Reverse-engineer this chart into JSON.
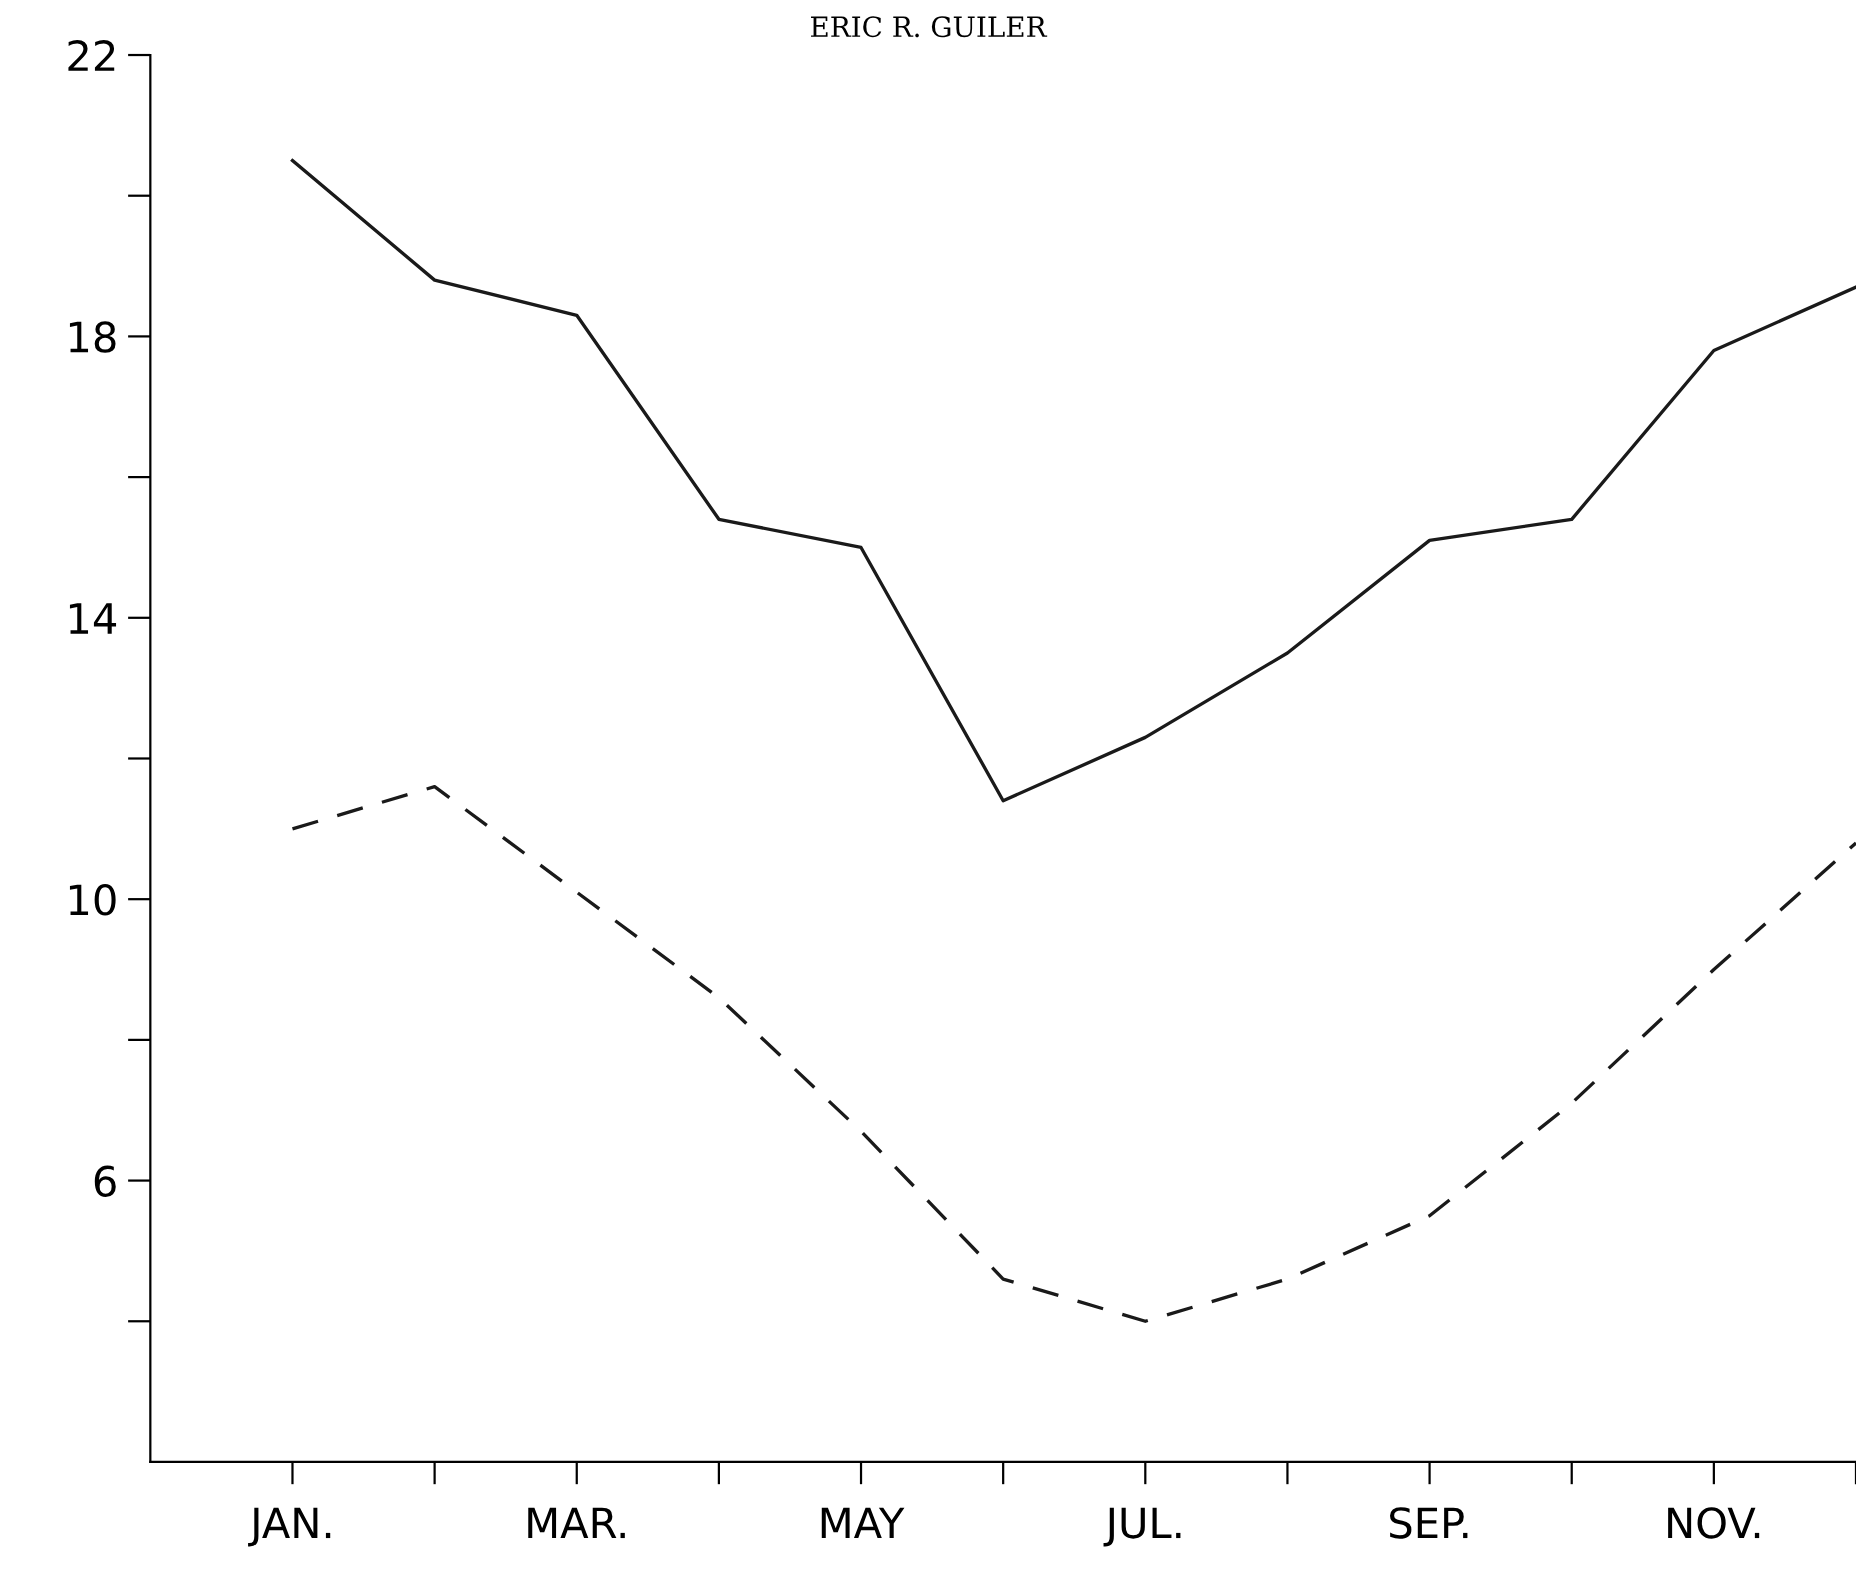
{
  "chart_data": {
    "type": "line",
    "title": "ERIC R. GUILER",
    "categories": [
      "JAN.",
      null,
      "MAR.",
      null,
      "MAY",
      null,
      "JUL.",
      null,
      "SEP.",
      null,
      "NOV.",
      null
    ],
    "series": [
      {
        "color": "#1a1a1a",
        "line_style": "solid",
        "values": [
          20.5,
          18.8,
          18.3,
          15.4,
          15.0,
          11.4,
          12.3,
          13.5,
          15.1,
          15.4,
          17.8,
          18.7
        ]
      },
      {
        "color": "#1a1a1a",
        "line_style": "dashed",
        "values": [
          11.0,
          11.6,
          10.1,
          8.6,
          6.7,
          4.6,
          4.0,
          4.6,
          5.5,
          7.1,
          9.0,
          10.8
        ]
      }
    ],
    "ylim": [
      2,
      22
    ],
    "yticks": [
      {
        "value": 4,
        "label": null
      },
      6,
      {
        "value": 8,
        "label": null
      },
      10,
      {
        "value": 12,
        "label": null
      },
      14,
      {
        "value": 16,
        "label": null
      },
      18,
      {
        "value": 20,
        "label": null
      },
      22
    ],
    "grid": false,
    "legend": false,
    "marker": "none"
  }
}
